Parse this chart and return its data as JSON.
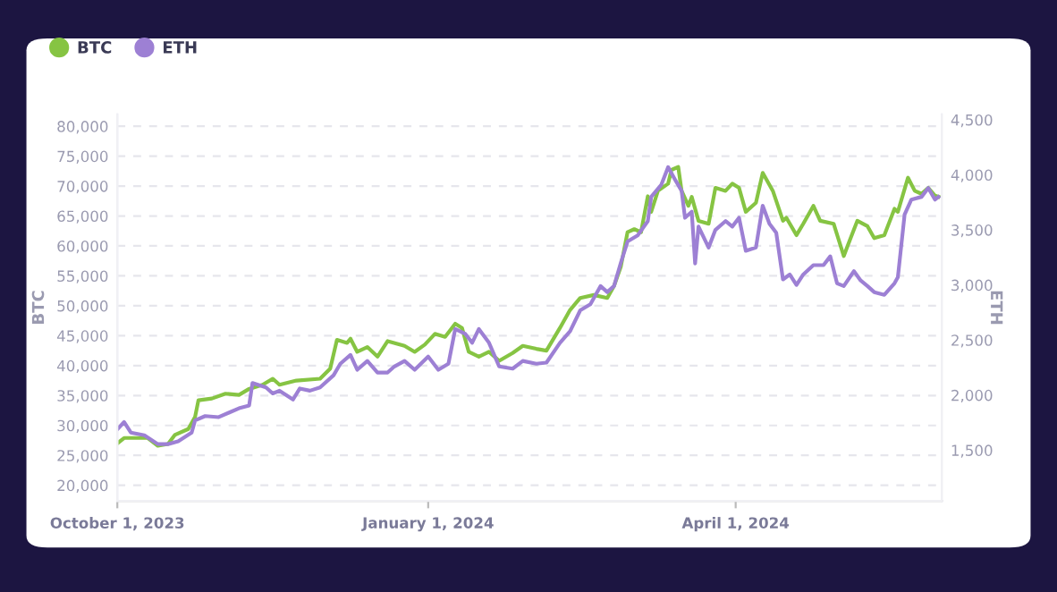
{
  "chart_data": {
    "type": "line",
    "ylabel": "BTC",
    "y2label": "ETH",
    "legend": "top left",
    "grid": "y",
    "marker": "none",
    "line_style": "solid",
    "xlim": [
      "2023-10-01",
      "2024-06-01"
    ],
    "xticks": [
      {
        "value": "2023-10-01",
        "label": "October 1, 2023"
      },
      {
        "value": "2024-01-01",
        "label": "January 1, 2024"
      },
      {
        "value": "2024-04-01",
        "label": "April 1, 2024"
      }
    ],
    "ylim": [
      17400,
      82000
    ],
    "yticks": [
      {
        "value": 20000,
        "label": "20,000"
      },
      {
        "value": 25000,
        "label": "25,000"
      },
      {
        "value": 30000,
        "label": "30,000"
      },
      {
        "value": 35000,
        "label": "35,000"
      },
      {
        "value": 40000,
        "label": "40,000"
      },
      {
        "value": 45000,
        "label": "45,000"
      },
      {
        "value": 50000,
        "label": "50,000"
      },
      {
        "value": 55000,
        "label": "55,000"
      },
      {
        "value": 60000,
        "label": "60,000"
      },
      {
        "value": 65000,
        "label": "65,000"
      },
      {
        "value": 70000,
        "label": "70,000"
      },
      {
        "value": 75000,
        "label": "75,000"
      },
      {
        "value": 80000,
        "label": "80,000"
      }
    ],
    "y2lim": [
      1040,
      4550
    ],
    "y2ticks": [
      {
        "value": 1500,
        "label": "1,500"
      },
      {
        "value": 2000,
        "label": "2,000"
      },
      {
        "value": 2500,
        "label": "2,500"
      },
      {
        "value": 3000,
        "label": "3,000"
      },
      {
        "value": 3500,
        "label": "3,500"
      },
      {
        "value": 4000,
        "label": "4,000"
      },
      {
        "value": 4500,
        "label": "4,500"
      }
    ],
    "series": [
      {
        "name": "BTC",
        "color": "#86c443",
        "x": [
          "2023-10-01",
          "2023-10-03",
          "2023-10-10",
          "2023-10-13",
          "2023-10-16",
          "2023-10-18",
          "2023-10-22",
          "2023-10-24",
          "2023-10-25",
          "2023-10-29",
          "2023-11-02",
          "2023-11-06",
          "2023-11-09",
          "2023-11-13",
          "2023-11-16",
          "2023-11-18",
          "2023-11-23",
          "2023-11-30",
          "2023-12-03",
          "2023-12-05",
          "2023-12-08",
          "2023-12-09",
          "2023-12-11",
          "2023-12-14",
          "2023-12-17",
          "2023-12-20",
          "2023-12-25",
          "2023-12-28",
          "2023-12-31",
          "2024-01-03",
          "2024-01-06",
          "2024-01-09",
          "2024-01-11",
          "2024-01-13",
          "2024-01-16",
          "2024-01-19",
          "2024-01-22",
          "2024-01-26",
          "2024-01-29",
          "2024-02-02",
          "2024-02-05",
          "2024-02-09",
          "2024-02-12",
          "2024-02-15",
          "2024-02-19",
          "2024-02-23",
          "2024-02-25",
          "2024-02-27",
          "2024-02-29",
          "2024-03-02",
          "2024-03-04",
          "2024-03-06",
          "2024-03-07",
          "2024-03-09",
          "2024-03-12",
          "2024-03-13",
          "2024-03-15",
          "2024-03-16",
          "2024-03-18",
          "2024-03-19",
          "2024-03-21",
          "2024-03-24",
          "2024-03-26",
          "2024-03-29",
          "2024-03-31",
          "2024-04-02",
          "2024-04-04",
          "2024-04-07",
          "2024-04-09",
          "2024-04-11",
          "2024-04-12",
          "2024-04-15",
          "2024-04-16",
          "2024-04-19",
          "2024-04-21",
          "2024-04-24",
          "2024-04-26",
          "2024-04-30",
          "2024-05-03",
          "2024-05-04",
          "2024-05-07",
          "2024-05-10",
          "2024-05-12",
          "2024-05-15",
          "2024-05-18",
          "2024-05-19",
          "2024-05-22",
          "2024-05-24",
          "2024-05-26",
          "2024-05-28",
          "2024-05-30",
          "2024-05-31"
        ],
        "values": [
          27000,
          27900,
          27900,
          26600,
          26900,
          28400,
          29400,
          31400,
          34200,
          34500,
          35300,
          35100,
          36100,
          36800,
          37800,
          36800,
          37500,
          37800,
          39500,
          44300,
          43800,
          44500,
          42300,
          43100,
          41500,
          44100,
          43300,
          42300,
          43500,
          45300,
          44800,
          47000,
          46300,
          42300,
          41500,
          42300,
          40800,
          42100,
          43300,
          42800,
          42500,
          46300,
          49300,
          51300,
          51800,
          51300,
          53300,
          56500,
          62300,
          62800,
          62300,
          68300,
          65700,
          69200,
          70400,
          72700,
          73200,
          69200,
          66700,
          68200,
          64200,
          63700,
          69700,
          69200,
          70400,
          69700,
          65700,
          67200,
          72200,
          70200,
          69200,
          64200,
          64700,
          61800,
          63700,
          66700,
          64200,
          63700,
          58300,
          59800,
          64200,
          63300,
          61300,
          61800,
          66200,
          65700,
          71400,
          69200,
          68700,
          69700,
          68400,
          68200
        ]
      },
      {
        "name": "ETH",
        "color": "#9d80d4",
        "axis": "y2",
        "x": [
          "2023-10-01",
          "2023-10-03",
          "2023-10-05",
          "2023-10-09",
          "2023-10-13",
          "2023-10-16",
          "2023-10-19",
          "2023-10-23",
          "2023-10-24",
          "2023-10-27",
          "2023-10-31",
          "2023-11-03",
          "2023-11-06",
          "2023-11-09",
          "2023-11-10",
          "2023-11-14",
          "2023-11-16",
          "2023-11-18",
          "2023-11-22",
          "2023-11-24",
          "2023-11-27",
          "2023-11-30",
          "2023-12-04",
          "2023-12-06",
          "2023-12-09",
          "2023-12-11",
          "2023-12-14",
          "2023-12-17",
          "2023-12-20",
          "2023-12-22",
          "2023-12-25",
          "2023-12-28",
          "2024-01-01",
          "2024-01-04",
          "2024-01-07",
          "2024-01-09",
          "2024-01-12",
          "2024-01-14",
          "2024-01-16",
          "2024-01-19",
          "2024-01-22",
          "2024-01-26",
          "2024-01-29",
          "2024-02-02",
          "2024-02-05",
          "2024-02-09",
          "2024-02-12",
          "2024-02-15",
          "2024-02-18",
          "2024-02-21",
          "2024-02-23",
          "2024-02-25",
          "2024-02-27",
          "2024-02-29",
          "2024-03-03",
          "2024-03-06",
          "2024-03-07",
          "2024-03-10",
          "2024-03-12",
          "2024-03-14",
          "2024-03-16",
          "2024-03-17",
          "2024-03-19",
          "2024-03-20",
          "2024-03-21",
          "2024-03-24",
          "2024-03-26",
          "2024-03-29",
          "2024-03-31",
          "2024-04-02",
          "2024-04-04",
          "2024-04-07",
          "2024-04-09",
          "2024-04-11",
          "2024-04-13",
          "2024-04-15",
          "2024-04-17",
          "2024-04-19",
          "2024-04-21",
          "2024-04-24",
          "2024-04-27",
          "2024-04-29",
          "2024-05-01",
          "2024-05-03",
          "2024-05-06",
          "2024-05-08",
          "2024-05-10",
          "2024-05-12",
          "2024-05-15",
          "2024-05-18",
          "2024-05-19",
          "2024-05-21",
          "2024-05-23",
          "2024-05-26",
          "2024-05-28",
          "2024-05-30",
          "2024-05-31"
        ],
        "values": [
          1690,
          1755,
          1660,
          1635,
          1555,
          1555,
          1580,
          1660,
          1770,
          1810,
          1800,
          1840,
          1880,
          1905,
          2110,
          2070,
          2015,
          2040,
          1960,
          2060,
          2040,
          2070,
          2180,
          2285,
          2365,
          2230,
          2310,
          2205,
          2205,
          2260,
          2310,
          2230,
          2350,
          2230,
          2285,
          2600,
          2555,
          2475,
          2600,
          2475,
          2260,
          2240,
          2310,
          2285,
          2295,
          2475,
          2580,
          2770,
          2825,
          2990,
          2935,
          2990,
          3200,
          3395,
          3450,
          3580,
          3800,
          3910,
          4070,
          3960,
          3855,
          3610,
          3665,
          3195,
          3530,
          3340,
          3500,
          3580,
          3530,
          3610,
          3310,
          3340,
          3720,
          3555,
          3475,
          3050,
          3095,
          3000,
          3095,
          3180,
          3180,
          3260,
          3015,
          2990,
          3125,
          3040,
          2990,
          2935,
          2910,
          3015,
          3070,
          3640,
          3775,
          3800,
          3880,
          3775,
          3800
        ]
      }
    ]
  }
}
